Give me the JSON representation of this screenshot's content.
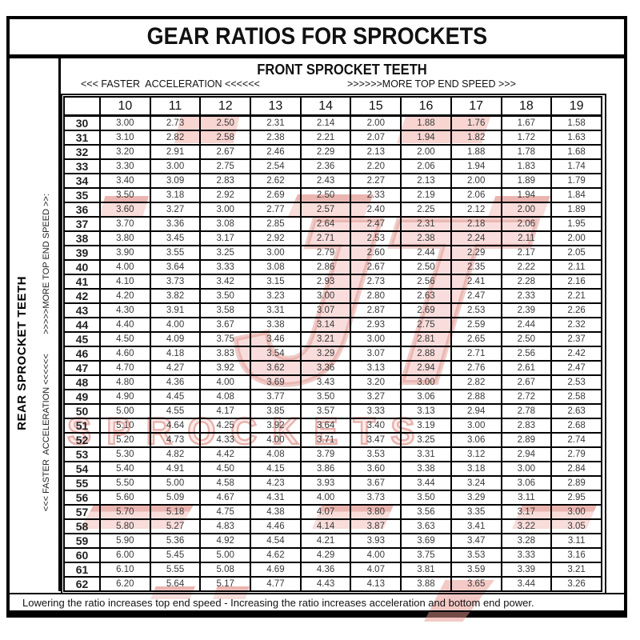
{
  "title": "GEAR RATIOS FOR SPROCKETS",
  "front_sprocket_header": "FRONT SPROCKET TEETH",
  "front_accel_label": "<<< FASTER  ACCELERATION <<<<<<",
  "front_speed_label": ">>>>>>MORE TOP END SPEED >>>",
  "rear_sprocket_label": "REAR SPROCKET TEETH",
  "rear_direction_label": "<<< FASTER  ACCELERATION <<<<<<        >>>>>MORE TOP END SPEED >>:",
  "footnote": "Lowering the ratio increases top end speed - Increasing the ratio increases acceleration and bottom end power.",
  "watermark": {
    "brand_text": "JT",
    "name_text": "SPROCKETS",
    "accent_color": "#cf5f55"
  },
  "chart_data": {
    "type": "table",
    "title": "GEAR RATIOS FOR SPROCKETS",
    "columns_header": "FRONT SPROCKET TEETH",
    "rows_header": "REAR SPROCKET TEETH",
    "columns": [
      "10",
      "11",
      "12",
      "13",
      "14",
      "15",
      "16",
      "17",
      "18",
      "19"
    ],
    "rows": [
      {
        "rear": "30",
        "values": [
          "3.00",
          "2.73",
          "2.50",
          "2.31",
          "2.14",
          "2.00",
          "1.88",
          "1.76",
          "1.67",
          "1.58"
        ]
      },
      {
        "rear": "31",
        "values": [
          "3.10",
          "2.82",
          "2.58",
          "2.38",
          "2.21",
          "2.07",
          "1.94",
          "1.82",
          "1.72",
          "1.63"
        ]
      },
      {
        "rear": "32",
        "values": [
          "3.20",
          "2.91",
          "2.67",
          "2.46",
          "2.29",
          "2.13",
          "2.00",
          "1.88",
          "1.78",
          "1.68"
        ]
      },
      {
        "rear": "33",
        "values": [
          "3.30",
          "3.00",
          "2.75",
          "2.54",
          "2.36",
          "2.20",
          "2.06",
          "1.94",
          "1.83",
          "1.74"
        ]
      },
      {
        "rear": "34",
        "values": [
          "3.40",
          "3.09",
          "2.83",
          "2.62",
          "2.43",
          "2.27",
          "2.13",
          "2.00",
          "1.89",
          "1.79"
        ]
      },
      {
        "rear": "35",
        "values": [
          "3.50",
          "3.18",
          "2.92",
          "2.69",
          "2.50",
          "2.33",
          "2.19",
          "2.06",
          "1.94",
          "1.84"
        ]
      },
      {
        "rear": "36",
        "values": [
          "3.60",
          "3.27",
          "3.00",
          "2.77",
          "2.57",
          "2.40",
          "2.25",
          "2.12",
          "2.00",
          "1.89"
        ]
      },
      {
        "rear": "37",
        "values": [
          "3.70",
          "3.36",
          "3.08",
          "2.85",
          "2.64",
          "2.47",
          "2.31",
          "2.18",
          "2.06",
          "1.95"
        ]
      },
      {
        "rear": "38",
        "values": [
          "3.80",
          "3.45",
          "3.17",
          "2.92",
          "2.71",
          "2.53",
          "2.38",
          "2.24",
          "2.11",
          "2.00"
        ]
      },
      {
        "rear": "39",
        "values": [
          "3.90",
          "3.55",
          "3.25",
          "3.00",
          "2.79",
          "2.60",
          "2.44",
          "2.29",
          "2.17",
          "2.05"
        ]
      },
      {
        "rear": "40",
        "values": [
          "4.00",
          "3.64",
          "3.33",
          "3.08",
          "2.86",
          "2.67",
          "2.50",
          "2.35",
          "2.22",
          "2.11"
        ]
      },
      {
        "rear": "41",
        "values": [
          "4.10",
          "3.73",
          "3.42",
          "3.15",
          "2.93",
          "2.73",
          "2.56",
          "2.41",
          "2.28",
          "2.16"
        ]
      },
      {
        "rear": "42",
        "values": [
          "4.20",
          "3.82",
          "3.50",
          "3.23",
          "3.00",
          "2.80",
          "2.63",
          "2.47",
          "2.33",
          "2.21"
        ]
      },
      {
        "rear": "43",
        "values": [
          "4.30",
          "3.91",
          "3.58",
          "3.31",
          "3.07",
          "2.87",
          "2.69",
          "2.53",
          "2.39",
          "2.26"
        ]
      },
      {
        "rear": "44",
        "values": [
          "4.40",
          "4.00",
          "3.67",
          "3.38",
          "3.14",
          "2.93",
          "2.75",
          "2.59",
          "2.44",
          "2.32"
        ]
      },
      {
        "rear": "45",
        "values": [
          "4.50",
          "4.09",
          "3.75",
          "3.46",
          "3.21",
          "3.00",
          "2.81",
          "2.65",
          "2.50",
          "2.37"
        ]
      },
      {
        "rear": "46",
        "values": [
          "4.60",
          "4.18",
          "3.83",
          "3.54",
          "3.29",
          "3.07",
          "2.88",
          "2.71",
          "2.56",
          "2.42"
        ]
      },
      {
        "rear": "47",
        "values": [
          "4.70",
          "4.27",
          "3.92",
          "3.62",
          "3.36",
          "3.13",
          "2.94",
          "2.76",
          "2.61",
          "2.47"
        ]
      },
      {
        "rear": "48",
        "values": [
          "4.80",
          "4.36",
          "4.00",
          "3.69",
          "3.43",
          "3.20",
          "3.00",
          "2.82",
          "2.67",
          "2.53"
        ]
      },
      {
        "rear": "49",
        "values": [
          "4.90",
          "4.45",
          "4.08",
          "3.77",
          "3.50",
          "3.27",
          "3.06",
          "2.88",
          "2.72",
          "2.58"
        ]
      },
      {
        "rear": "50",
        "values": [
          "5.00",
          "4.55",
          "4.17",
          "3.85",
          "3.57",
          "3.33",
          "3.13",
          "2.94",
          "2.78",
          "2.63"
        ]
      },
      {
        "rear": "51",
        "values": [
          "5.10",
          "4.64",
          "4.25",
          "3.92",
          "3.64",
          "3.40",
          "3.19",
          "3.00",
          "2.83",
          "2.68"
        ]
      },
      {
        "rear": "52",
        "values": [
          "5.20",
          "4.73",
          "4.33",
          "4.00",
          "3.71",
          "3.47",
          "3.25",
          "3.06",
          "2.89",
          "2.74"
        ]
      },
      {
        "rear": "53",
        "values": [
          "5.30",
          "4.82",
          "4.42",
          "4.08",
          "3.79",
          "3.53",
          "3.31",
          "3.12",
          "2.94",
          "2.79"
        ]
      },
      {
        "rear": "54",
        "values": [
          "5.40",
          "4.91",
          "4.50",
          "4.15",
          "3.86",
          "3.60",
          "3.38",
          "3.18",
          "3.00",
          "2.84"
        ]
      },
      {
        "rear": "55",
        "values": [
          "5.50",
          "5.00",
          "4.58",
          "4.23",
          "3.93",
          "3.67",
          "3.44",
          "3.24",
          "3.06",
          "2.89"
        ]
      },
      {
        "rear": "56",
        "values": [
          "5.60",
          "5.09",
          "4.67",
          "4.31",
          "4.00",
          "3.73",
          "3.50",
          "3.29",
          "3.11",
          "2.95"
        ]
      },
      {
        "rear": "57",
        "values": [
          "5.70",
          "5.18",
          "4.75",
          "4.38",
          "4.07",
          "3.80",
          "3.56",
          "3.35",
          "3.17",
          "3.00"
        ]
      },
      {
        "rear": "58",
        "values": [
          "5.80",
          "5.27",
          "4.83",
          "4.46",
          "4.14",
          "3.87",
          "3.63",
          "3.41",
          "3.22",
          "3.05"
        ]
      },
      {
        "rear": "59",
        "values": [
          "5.90",
          "5.36",
          "4.92",
          "4.54",
          "4.21",
          "3.93",
          "3.69",
          "3.47",
          "3.28",
          "3.11"
        ]
      },
      {
        "rear": "60",
        "values": [
          "6.00",
          "5.45",
          "5.00",
          "4.62",
          "4.29",
          "4.00",
          "3.75",
          "3.53",
          "3.33",
          "3.16"
        ]
      },
      {
        "rear": "61",
        "values": [
          "6.10",
          "5.55",
          "5.08",
          "4.69",
          "4.36",
          "4.07",
          "3.81",
          "3.59",
          "3.39",
          "3.21"
        ]
      },
      {
        "rear": "62",
        "values": [
          "6.20",
          "5.64",
          "5.17",
          "4.77",
          "4.43",
          "4.13",
          "3.88",
          "3.65",
          "3.44",
          "3.26"
        ]
      }
    ]
  }
}
